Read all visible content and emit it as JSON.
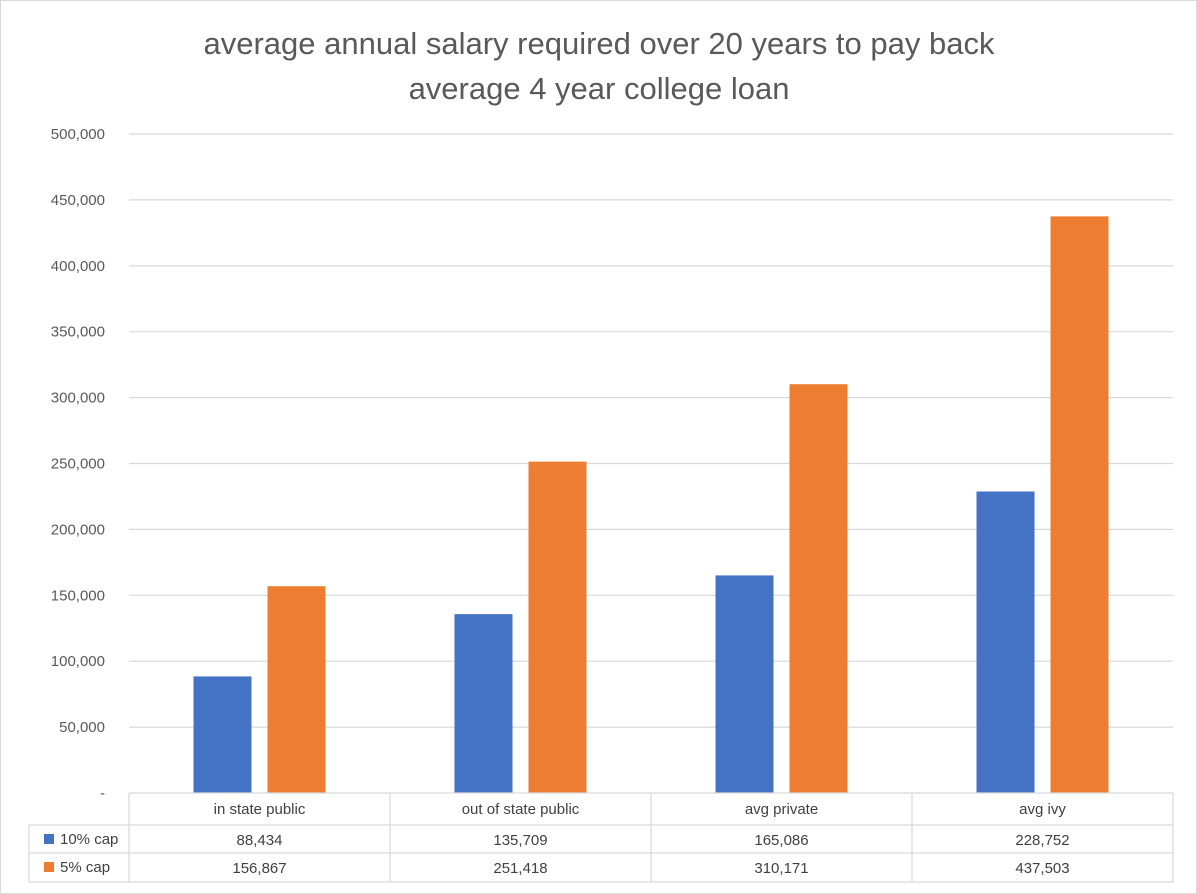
{
  "chart_data": {
    "type": "bar",
    "title_lines": [
      "average annual salary required over 20 years to pay back",
      "average 4 year college loan"
    ],
    "categories": [
      "in state public",
      "out of state public",
      "avg private",
      "avg ivy"
    ],
    "series": [
      {
        "name": "10% cap",
        "color": "#4472C4",
        "values": [
          88434,
          135709,
          165086,
          228752
        ],
        "labels": [
          "88,434",
          "135,709",
          "165,086",
          "228,752"
        ]
      },
      {
        "name": "5% cap",
        "color": "#ED7D31",
        "values": [
          156867,
          251418,
          310171,
          437503
        ],
        "labels": [
          "156,867",
          "251,418",
          "310,171",
          "437,503"
        ]
      }
    ],
    "ylim": [
      0,
      500000
    ],
    "y_ticks": [
      {
        "value": 0,
        "label": "-"
      },
      {
        "value": 50000,
        "label": "50,000"
      },
      {
        "value": 100000,
        "label": "100,000"
      },
      {
        "value": 150000,
        "label": "150,000"
      },
      {
        "value": 200000,
        "label": "200,000"
      },
      {
        "value": 250000,
        "label": "250,000"
      },
      {
        "value": 300000,
        "label": "300,000"
      },
      {
        "value": 350000,
        "label": "350,000"
      },
      {
        "value": 400000,
        "label": "400,000"
      },
      {
        "value": 450000,
        "label": "450,000"
      },
      {
        "value": 500000,
        "label": "500,000"
      }
    ],
    "grid": true,
    "legend": "data-table"
  }
}
